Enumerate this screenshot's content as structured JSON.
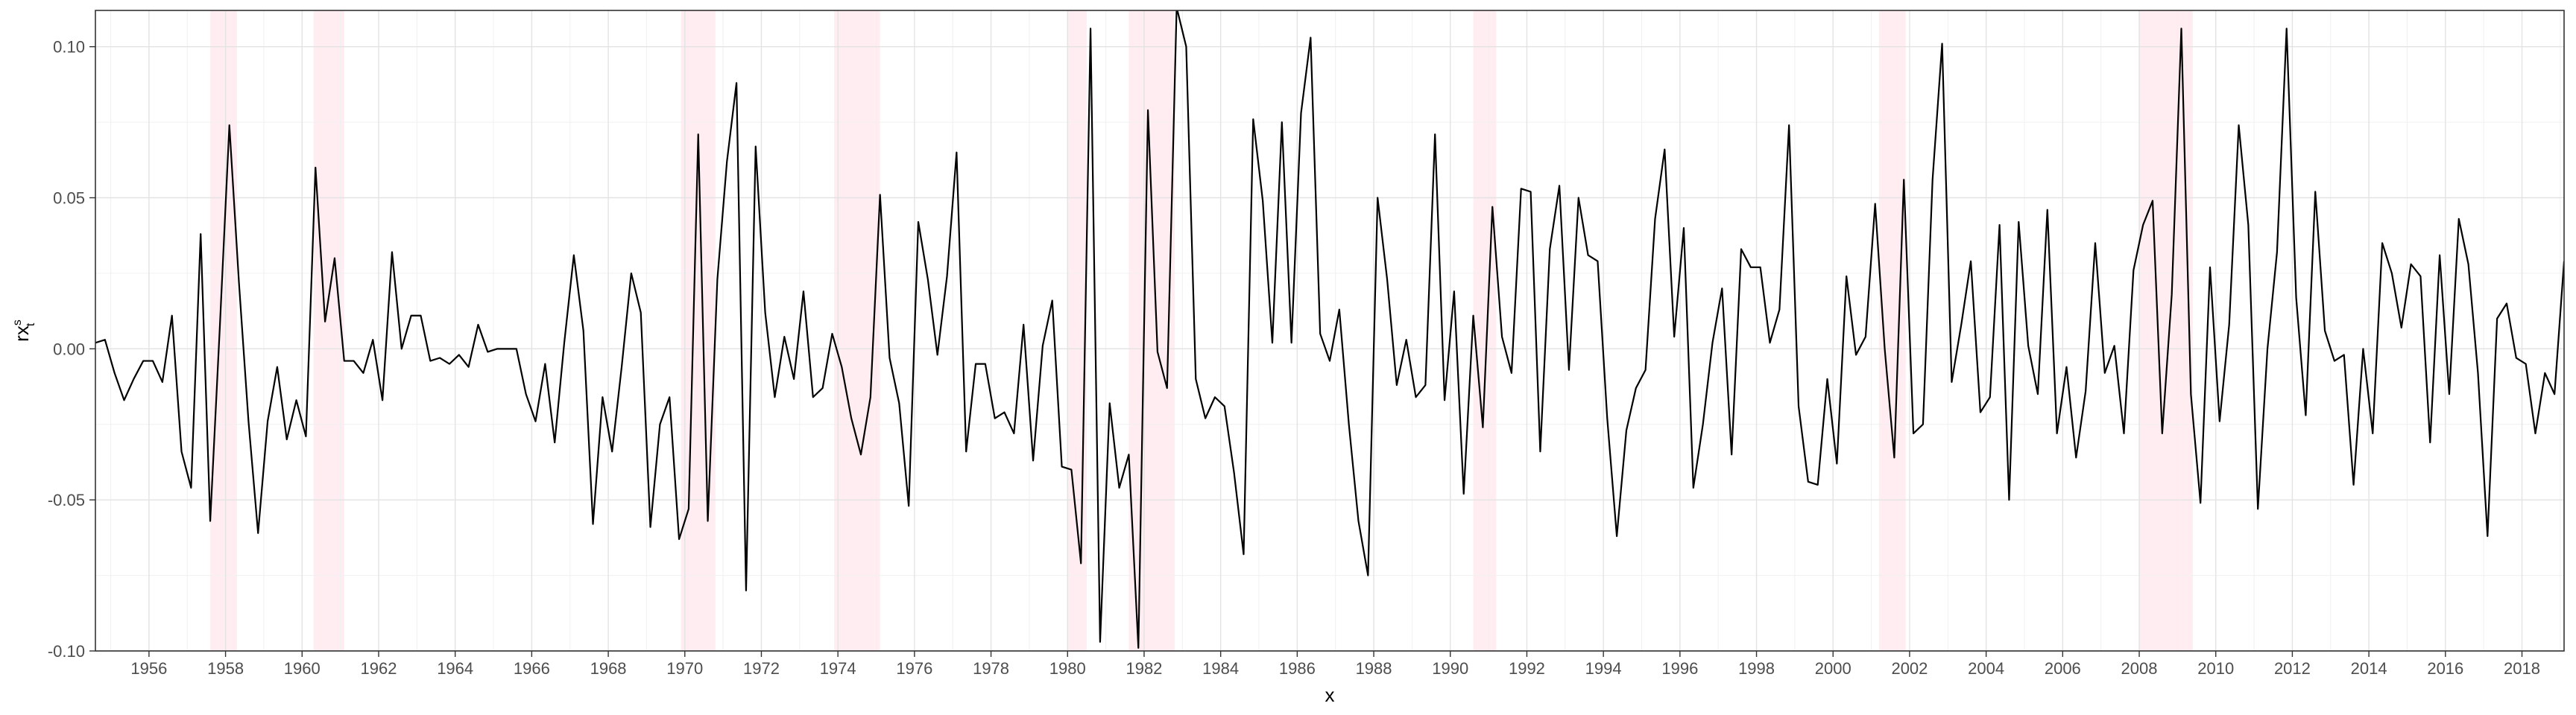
{
  "chart_data": {
    "type": "line",
    "xlabel": "x",
    "ylabel": "rx",
    "ylabel_superscript": "s",
    "ylabel_subscript": "t",
    "xlim": [
      1954.6,
      1019.0
    ],
    "ylim": [
      -0.1,
      0.112
    ],
    "x_ticks": [
      "1956",
      "1958",
      "1960",
      "1962",
      "1964",
      "1966",
      "1968",
      "1970",
      "1972",
      "1974",
      "1976",
      "1978",
      "1980",
      "1982",
      "1984",
      "1986",
      "1988",
      "1990",
      "1992",
      "1994",
      "1996",
      "1998",
      "2000",
      "2002",
      "2004",
      "2006",
      "2008",
      "2010",
      "2012",
      "2014",
      "2016",
      "2018"
    ],
    "y_ticks": [
      "-0.10",
      "-0.05",
      "0.00",
      "0.05",
      "0.10"
    ],
    "y_tick_values": [
      -0.1,
      -0.05,
      0.0,
      0.05,
      0.1
    ],
    "grid": true,
    "line_color": "#000000",
    "recession_color": "#ffc0cb",
    "recession_shading": [
      [
        1957.6,
        1958.3
      ],
      [
        1960.3,
        1961.1
      ],
      [
        1969.9,
        1970.8
      ],
      [
        1973.9,
        1975.1
      ],
      [
        1980.0,
        1980.5
      ],
      [
        1981.6,
        1982.8
      ],
      [
        1990.6,
        1991.2
      ],
      [
        2001.2,
        2001.9
      ],
      [
        2008.0,
        2009.4
      ]
    ],
    "series": [
      {
        "x_start": 1954.6,
        "x_step": 0.25,
        "values": [
          0.002,
          0.003,
          -0.008,
          -0.017,
          -0.01,
          -0.004,
          -0.004,
          -0.011,
          0.011,
          -0.034,
          -0.046,
          0.038,
          -0.057,
          0.007,
          0.074,
          0.022,
          -0.024,
          -0.061,
          -0.024,
          -0.006,
          -0.03,
          -0.017,
          -0.029,
          0.06,
          0.009,
          0.03,
          -0.004,
          -0.004,
          -0.008,
          0.003,
          -0.017,
          0.032,
          0.0,
          0.011,
          0.011,
          -0.004,
          -0.003,
          -0.005,
          -0.002,
          -0.006,
          0.008,
          -0.001,
          0.0,
          0.0,
          0.0,
          -0.015,
          -0.024,
          -0.005,
          -0.031,
          0.002,
          0.031,
          0.006,
          -0.058,
          -0.016,
          -0.034,
          -0.006,
          0.025,
          0.012,
          -0.059,
          -0.025,
          -0.016,
          -0.063,
          -0.053,
          0.071,
          -0.057,
          0.023,
          0.062,
          0.088,
          -0.08,
          0.067,
          0.012,
          -0.016,
          0.004,
          -0.01,
          0.019,
          -0.016,
          -0.013,
          0.005,
          -0.006,
          -0.023,
          -0.035,
          -0.016,
          0.051,
          -0.003,
          -0.018,
          -0.052,
          0.042,
          0.023,
          -0.002,
          0.024,
          0.065,
          -0.034,
          -0.005,
          -0.005,
          -0.023,
          -0.021,
          -0.028,
          0.008,
          -0.037,
          0.001,
          0.016,
          -0.039,
          -0.04,
          -0.071,
          0.106,
          -0.097,
          -0.018,
          -0.046,
          -0.035,
          -0.099,
          0.079,
          -0.001,
          -0.013,
          0.113,
          0.1,
          -0.01,
          -0.023,
          -0.016,
          -0.019,
          -0.041,
          -0.068,
          0.076,
          0.049,
          0.002,
          0.075,
          0.002,
          0.078,
          0.103,
          0.005,
          -0.004,
          0.013,
          -0.025,
          -0.057,
          -0.075,
          0.05,
          0.023,
          -0.012,
          0.003,
          -0.016,
          -0.012,
          0.071,
          -0.017,
          0.019,
          -0.048,
          0.011,
          -0.026,
          0.047,
          0.004,
          -0.008,
          0.053,
          0.052,
          -0.034,
          0.033,
          0.054,
          -0.007,
          0.05,
          0.031,
          0.029,
          -0.023,
          -0.062,
          -0.027,
          -0.013,
          -0.007,
          0.043,
          0.066,
          0.004,
          0.04,
          -0.046,
          -0.025,
          0.002,
          0.02,
          -0.035,
          0.033,
          0.027,
          0.027,
          0.002,
          0.013,
          0.074,
          -0.019,
          -0.044,
          -0.045,
          -0.01,
          -0.038,
          0.024,
          -0.002,
          0.004,
          0.048,
          0.0,
          -0.036,
          0.056,
          -0.028,
          -0.025,
          0.056,
          0.101,
          -0.011,
          0.008,
          0.029,
          -0.021,
          -0.016,
          0.041,
          -0.05,
          0.042,
          0.001,
          -0.015,
          0.046,
          -0.028,
          -0.006,
          -0.036,
          -0.014,
          0.035,
          -0.008,
          0.001,
          -0.028,
          0.026,
          0.041,
          0.049,
          -0.028,
          0.018,
          0.106,
          -0.015,
          -0.051,
          0.027,
          -0.024,
          0.008,
          0.074,
          0.041,
          -0.053,
          0.0,
          0.032,
          0.106,
          0.017,
          -0.022,
          0.052,
          0.006,
          -0.004,
          -0.002,
          -0.045,
          0.0,
          -0.028,
          0.035,
          0.025,
          0.007,
          0.028,
          0.024,
          -0.031,
          0.031,
          -0.015,
          0.043,
          0.028,
          -0.008,
          -0.062,
          0.01,
          0.015,
          -0.003,
          -0.005,
          -0.028,
          -0.008,
          -0.015,
          0.029
        ]
      }
    ]
  }
}
